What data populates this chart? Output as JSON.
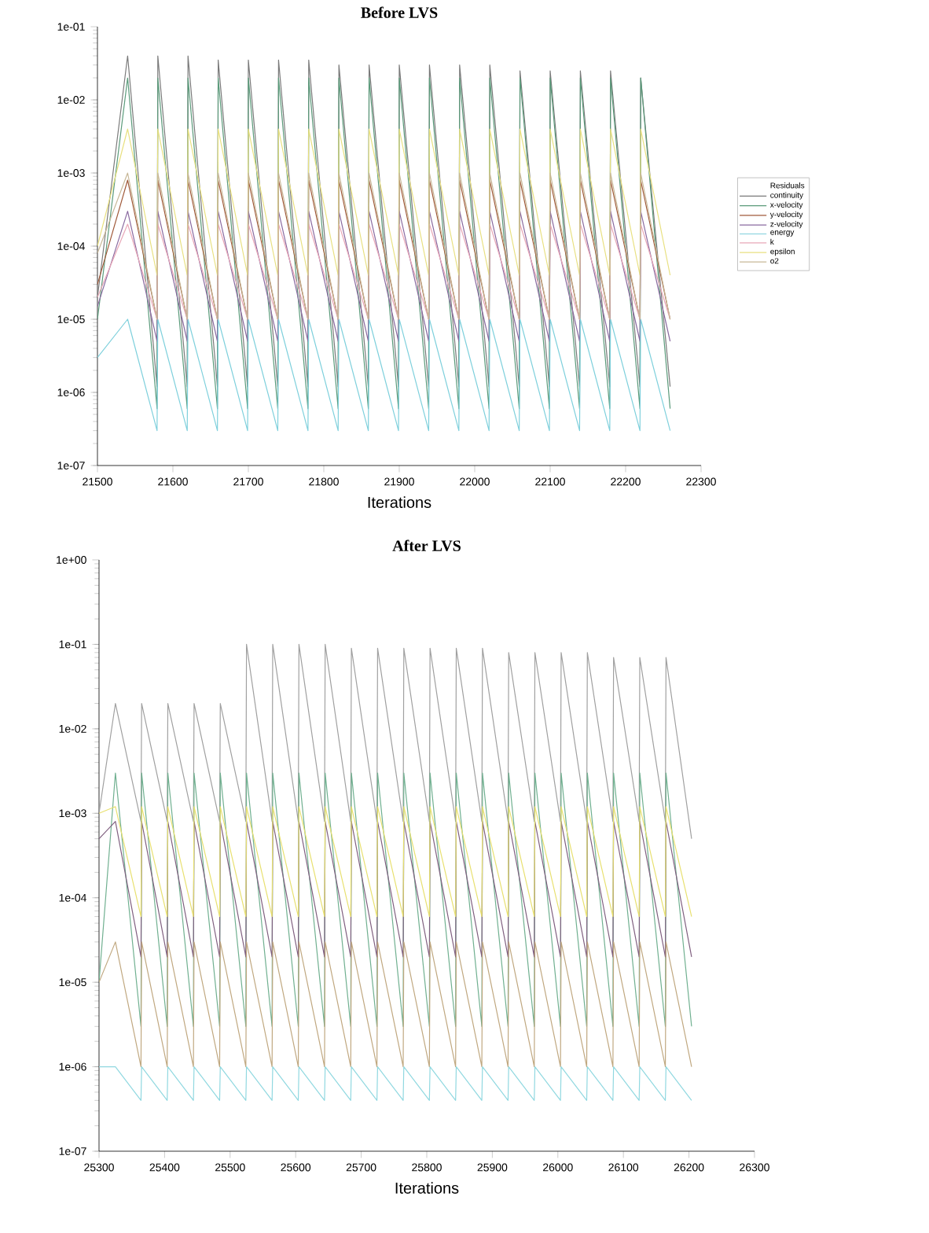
{
  "chart_data": [
    {
      "type": "line",
      "title": "Before LVS",
      "xlabel": "Iterations",
      "log": "y",
      "legend": "right",
      "legend_title": "Residuals",
      "x": [
        21500,
        21540,
        21579,
        21580,
        21619,
        21620,
        21659,
        21660,
        21699,
        21700,
        21739,
        21740,
        21779,
        21780,
        21819,
        21820,
        21859,
        21860,
        21899,
        21900,
        21939,
        21940,
        21979,
        21980,
        22019,
        22020,
        22059,
        22060,
        22099,
        22100,
        22139,
        22140,
        22179,
        22180,
        22219,
        22220,
        22259
      ],
      "xlim": [
        21500,
        22300
      ],
      "xticks": [
        21500,
        21600,
        21700,
        21800,
        21900,
        22000,
        22100,
        22200,
        22300
      ],
      "ylim": [
        1e-07,
        0.1
      ],
      "yticks": [
        {
          "value": 1e-07,
          "label": "1e-07"
        },
        {
          "value": 1e-06,
          "label": "1e-06"
        },
        {
          "value": 1e-05,
          "label": "1e-05"
        },
        {
          "value": 0.0001,
          "label": "1e-04"
        },
        {
          "value": 0.001,
          "label": "1e-03"
        },
        {
          "value": 0.01,
          "label": "1e-02"
        },
        {
          "value": 0.1,
          "label": "1e-01"
        }
      ],
      "series": [
        {
          "name": "continuity",
          "color": "#7a7a7a",
          "values": [
            2e-05,
            0.04,
            1.2e-06,
            0.04,
            1.2e-06,
            0.04,
            1.2e-06,
            0.035,
            1.2e-06,
            0.035,
            1.2e-06,
            0.035,
            1.2e-06,
            0.035,
            1.2e-06,
            0.03,
            1.2e-06,
            0.03,
            1.2e-06,
            0.03,
            1.2e-06,
            0.03,
            1.2e-06,
            0.03,
            1.2e-06,
            0.03,
            1.2e-06,
            0.025,
            1.2e-06,
            0.025,
            1.2e-06,
            0.025,
            1.2e-06,
            0.025,
            1.2e-06,
            0.02,
            1.2e-06
          ]
        },
        {
          "name": "x-velocity",
          "color": "#5a9a7a",
          "values": [
            1e-05,
            0.02,
            6e-07,
            0.02,
            6e-07,
            0.02,
            6e-07,
            0.02,
            6e-07,
            0.02,
            6e-07,
            0.02,
            6e-07,
            0.02,
            6e-07,
            0.02,
            6e-07,
            0.02,
            6e-07,
            0.02,
            6e-07,
            0.02,
            6e-07,
            0.02,
            6e-07,
            0.02,
            6e-07,
            0.02,
            6e-07,
            0.02,
            6e-07,
            0.02,
            6e-07,
            0.02,
            6e-07,
            0.02,
            6e-07
          ]
        },
        {
          "name": "y-velocity",
          "color": "#a05a3a",
          "values": [
            3e-05,
            0.0008,
            1e-05,
            0.0008,
            1e-05,
            0.0008,
            1e-05,
            0.0008,
            1e-05,
            0.0008,
            1e-05,
            0.0008,
            1e-05,
            0.0008,
            1e-05,
            0.0008,
            1e-05,
            0.0008,
            1e-05,
            0.0008,
            1e-05,
            0.0008,
            1e-05,
            0.0008,
            1e-05,
            0.0008,
            1e-05,
            0.0008,
            1e-05,
            0.0008,
            1e-05,
            0.0008,
            1e-05,
            0.0008,
            1e-05,
            0.0008,
            1e-05
          ]
        },
        {
          "name": "z-velocity",
          "color": "#8a6aa0",
          "values": [
            1.5e-05,
            0.0003,
            5e-06,
            0.0003,
            5e-06,
            0.0003,
            5e-06,
            0.0003,
            5e-06,
            0.0003,
            5e-06,
            0.0003,
            5e-06,
            0.0003,
            5e-06,
            0.0003,
            5e-06,
            0.0003,
            5e-06,
            0.0003,
            5e-06,
            0.0003,
            5e-06,
            0.0003,
            5e-06,
            0.0003,
            5e-06,
            0.0003,
            5e-06,
            0.0003,
            5e-06,
            0.0003,
            5e-06,
            0.0003,
            5e-06,
            0.0003,
            5e-06
          ]
        },
        {
          "name": "energy",
          "color": "#7fd0dc",
          "values": [
            3e-06,
            1e-05,
            3e-07,
            1e-05,
            3e-07,
            1e-05,
            3e-07,
            1e-05,
            3e-07,
            1e-05,
            3e-07,
            1e-05,
            3e-07,
            1e-05,
            3e-07,
            1e-05,
            3e-07,
            1e-05,
            3e-07,
            1e-05,
            3e-07,
            1e-05,
            3e-07,
            1e-05,
            3e-07,
            1e-05,
            3e-07,
            1e-05,
            3e-07,
            1e-05,
            3e-07,
            1e-05,
            3e-07,
            1e-05,
            3e-07,
            1e-05,
            3e-07
          ]
        },
        {
          "name": "k",
          "color": "#e8a8b8",
          "values": [
            2e-05,
            0.0002,
            1e-05,
            0.0002,
            1e-05,
            0.0002,
            1e-05,
            0.0002,
            1e-05,
            0.0002,
            1e-05,
            0.0002,
            1e-05,
            0.0002,
            1e-05,
            0.0002,
            1e-05,
            0.0002,
            1e-05,
            0.0002,
            1e-05,
            0.0002,
            1e-05,
            0.0002,
            1e-05,
            0.0002,
            1e-05,
            0.0002,
            1e-05,
            0.0002,
            1e-05,
            0.0002,
            1e-05,
            0.0002,
            1e-05,
            0.0002,
            1e-05
          ]
        },
        {
          "name": "epsilon",
          "color": "#e8e080",
          "values": [
            0.0001,
            0.004,
            4e-05,
            0.004,
            4e-05,
            0.004,
            4e-05,
            0.004,
            4e-05,
            0.004,
            4e-05,
            0.004,
            4e-05,
            0.004,
            4e-05,
            0.004,
            4e-05,
            0.004,
            4e-05,
            0.004,
            4e-05,
            0.004,
            4e-05,
            0.004,
            4e-05,
            0.004,
            4e-05,
            0.004,
            4e-05,
            0.004,
            4e-05,
            0.004,
            4e-05,
            0.004,
            4e-05,
            0.004,
            4e-05
          ]
        },
        {
          "name": "o2",
          "color": "#c8b898",
          "values": [
            8e-05,
            0.001,
            1e-05,
            0.001,
            1e-05,
            0.001,
            1e-05,
            0.001,
            1e-05,
            0.001,
            1e-05,
            0.001,
            1e-05,
            0.001,
            1e-05,
            0.001,
            1e-05,
            0.001,
            1e-05,
            0.001,
            1e-05,
            0.001,
            1e-05,
            0.001,
            1e-05,
            0.001,
            1e-05,
            0.001,
            1e-05,
            0.001,
            1e-05,
            0.001,
            1e-05,
            0.001,
            1e-05,
            0.001,
            1e-05
          ]
        }
      ]
    },
    {
      "type": "line",
      "title": "After LVS",
      "xlabel": "Iterations",
      "log": "y",
      "x": [
        25300,
        25325,
        25364,
        25365,
        25404,
        25405,
        25444,
        25445,
        25484,
        25485,
        25524,
        25525,
        25564,
        25565,
        25604,
        25605,
        25644,
        25645,
        25684,
        25685,
        25724,
        25725,
        25764,
        25765,
        25804,
        25805,
        25844,
        25845,
        25884,
        25885,
        25924,
        25925,
        25964,
        25965,
        26004,
        26005,
        26044,
        26045,
        26084,
        26085,
        26124,
        26125,
        26164,
        26165,
        26204
      ],
      "xlim": [
        25300,
        26300
      ],
      "xticks": [
        25300,
        25400,
        25500,
        25600,
        25700,
        25800,
        25900,
        26000,
        26100,
        26200,
        26300
      ],
      "ylim": [
        1e-07,
        1
      ],
      "yticks": [
        {
          "value": 1e-07,
          "label": "1e-07"
        },
        {
          "value": 1e-06,
          "label": "1e-06"
        },
        {
          "value": 1e-05,
          "label": "1e-05"
        },
        {
          "value": 0.0001,
          "label": "1e-04"
        },
        {
          "value": 0.001,
          "label": "1e-03"
        },
        {
          "value": 0.01,
          "label": "1e-02"
        },
        {
          "value": 0.1,
          "label": "1e-01"
        },
        {
          "value": 1,
          "label": "1e+00"
        }
      ],
      "series": [
        {
          "color": "#a0a0a0",
          "values": [
            0.001,
            0.02,
            0.0008,
            0.02,
            0.0008,
            0.02,
            0.0008,
            0.02,
            0.0008,
            0.02,
            0.0008,
            0.1,
            0.0008,
            0.1,
            0.0008,
            0.1,
            0.0008,
            0.1,
            0.0008,
            0.09,
            0.0008,
            0.09,
            0.0008,
            0.09,
            0.0008,
            0.09,
            0.0008,
            0.09,
            0.0008,
            0.09,
            0.0008,
            0.08,
            0.0008,
            0.08,
            0.0008,
            0.08,
            0.0008,
            0.08,
            0.0008,
            0.07,
            0.0008,
            0.07,
            0.0008,
            0.07,
            0.0005
          ]
        },
        {
          "color": "#70b090",
          "values": [
            1e-05,
            0.003,
            3e-06,
            0.003,
            3e-06,
            0.003,
            3e-06,
            0.003,
            3e-06,
            0.003,
            3e-06,
            0.003,
            3e-06,
            0.003,
            3e-06,
            0.003,
            3e-06,
            0.003,
            3e-06,
            0.003,
            3e-06,
            0.003,
            3e-06,
            0.003,
            3e-06,
            0.003,
            3e-06,
            0.003,
            3e-06,
            0.003,
            3e-06,
            0.003,
            3e-06,
            0.003,
            3e-06,
            0.003,
            3e-06,
            0.003,
            3e-06,
            0.003,
            3e-06,
            0.003,
            3e-06,
            0.003,
            3e-06
          ]
        },
        {
          "color": "#806080",
          "values": [
            0.0005,
            0.0008,
            2e-05,
            0.0008,
            2e-05,
            0.0008,
            2e-05,
            0.0008,
            2e-05,
            0.0008,
            2e-05,
            0.0008,
            2e-05,
            0.0008,
            2e-05,
            0.0008,
            2e-05,
            0.0008,
            2e-05,
            0.0008,
            2e-05,
            0.0008,
            2e-05,
            0.0008,
            2e-05,
            0.0008,
            2e-05,
            0.0008,
            2e-05,
            0.0008,
            2e-05,
            0.0008,
            2e-05,
            0.0008,
            2e-05,
            0.0008,
            2e-05,
            0.0008,
            2e-05,
            0.0008,
            2e-05,
            0.0008,
            2e-05,
            0.0008,
            2e-05
          ]
        },
        {
          "color": "#e8e070",
          "values": [
            0.001,
            0.0012,
            6e-05,
            0.0012,
            6e-05,
            0.0012,
            6e-05,
            0.0012,
            6e-05,
            0.0012,
            6e-05,
            0.0012,
            6e-05,
            0.0012,
            6e-05,
            0.0012,
            6e-05,
            0.0012,
            6e-05,
            0.0012,
            6e-05,
            0.0012,
            6e-05,
            0.0012,
            6e-05,
            0.0012,
            6e-05,
            0.0012,
            6e-05,
            0.0012,
            6e-05,
            0.0012,
            6e-05,
            0.0012,
            6e-05,
            0.0012,
            6e-05,
            0.0012,
            6e-05,
            0.0012,
            6e-05,
            0.0012,
            6e-05,
            0.0012,
            6e-05
          ]
        },
        {
          "color": "#c0a880",
          "values": [
            1e-05,
            3e-05,
            1e-06,
            3e-05,
            1e-06,
            3e-05,
            1e-06,
            3e-05,
            1e-06,
            3e-05,
            1e-06,
            3e-05,
            1e-06,
            3e-05,
            1e-06,
            3e-05,
            1e-06,
            3e-05,
            1e-06,
            3e-05,
            1e-06,
            3e-05,
            1e-06,
            3e-05,
            1e-06,
            3e-05,
            1e-06,
            3e-05,
            1e-06,
            3e-05,
            1e-06,
            3e-05,
            1e-06,
            3e-05,
            1e-06,
            3e-05,
            1e-06,
            3e-05,
            1e-06,
            3e-05,
            1e-06,
            3e-05,
            1e-06,
            3e-05,
            1e-06
          ]
        },
        {
          "color": "#90d8e0",
          "values": [
            1e-06,
            1e-06,
            4e-07,
            1e-06,
            4e-07,
            1e-06,
            4e-07,
            1e-06,
            4e-07,
            1e-06,
            4e-07,
            1e-06,
            4e-07,
            1e-06,
            4e-07,
            1e-06,
            4e-07,
            1e-06,
            4e-07,
            1e-06,
            4e-07,
            1e-06,
            4e-07,
            1e-06,
            4e-07,
            1e-06,
            4e-07,
            1e-06,
            4e-07,
            1e-06,
            4e-07,
            1e-06,
            4e-07,
            1e-06,
            4e-07,
            1e-06,
            4e-07,
            1e-06,
            4e-07,
            1e-06,
            4e-07,
            1e-06,
            4e-07,
            1e-06,
            4e-07
          ]
        }
      ]
    }
  ]
}
